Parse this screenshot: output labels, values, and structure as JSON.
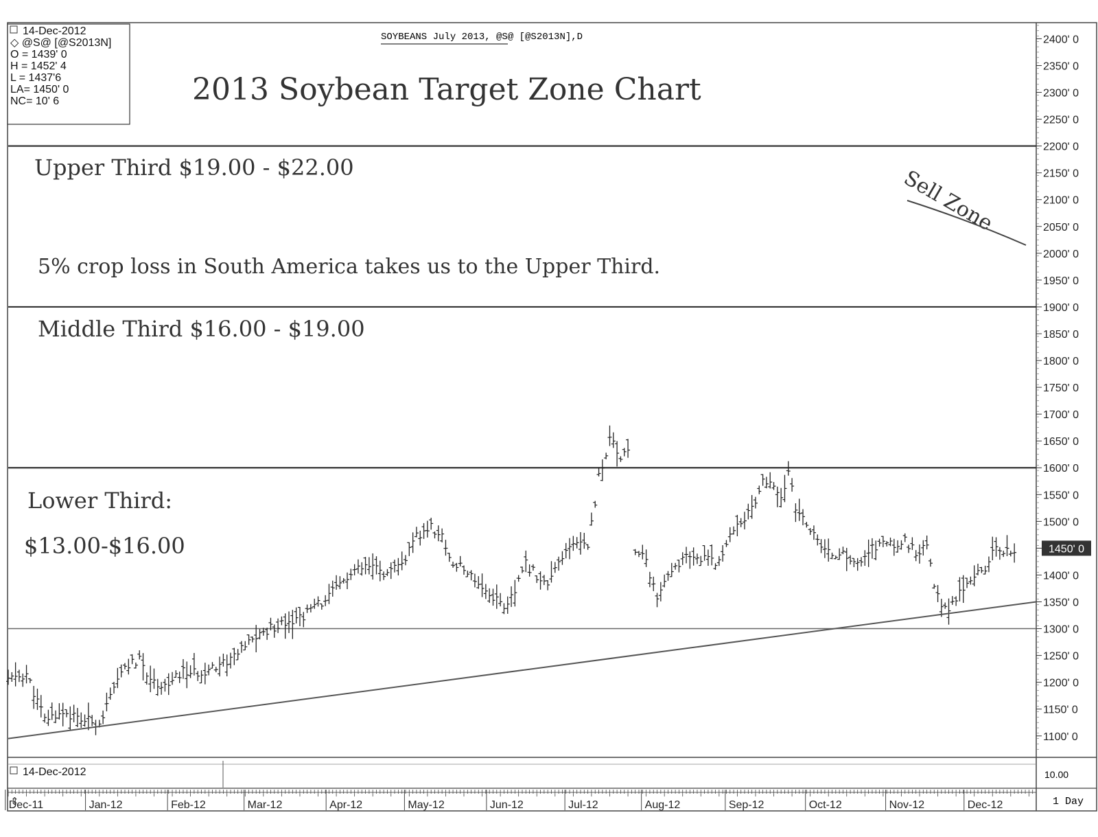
{
  "header": {
    "date": "14-Dec-2012",
    "symbol": "@S@ [@S2013N]",
    "open": "O = 1439' 0",
    "high": "H = 1452' 4",
    "low": "L = 1437'6",
    "last": "LA= 1450' 0",
    "net_change": "NC= 10' 6",
    "instrument_title": "SOYBEANS July 2013, @S@ [@S2013N],D"
  },
  "annotations": {
    "main_title": "2013 Soybean Target Zone Chart",
    "upper_third": "Upper Third $19.00 - $22.00",
    "crop_loss_note": "5% crop loss in South America takes us to the Upper Third.",
    "middle_third": "Middle Third $16.00 - $19.00",
    "lower_third_label": "Lower Third:",
    "lower_third_range": "$13.00-$16.00",
    "sell_zone": "Sell Zone"
  },
  "lower_panel": {
    "date": "14-Dec-2012",
    "scale_value": "10.00",
    "interval": "1 Day"
  },
  "colors": {
    "ink": "#222222",
    "pencil": "#555555",
    "paper": "#ffffff"
  },
  "chart_data": {
    "type": "bar",
    "subtype": "ohlc",
    "title": "SOYBEANS July 2013, @S@ [@S2013N],D",
    "ylim": [
      1060,
      2430
    ],
    "y_ticks": [
      2400,
      2350,
      2300,
      2250,
      2200,
      2150,
      2100,
      2050,
      2000,
      1950,
      1900,
      1850,
      1800,
      1750,
      1700,
      1650,
      1600,
      1550,
      1500,
      1450,
      1400,
      1350,
      1300,
      1250,
      1200,
      1150,
      1100
    ],
    "y_tick_labels": [
      "2400' 0",
      "2350' 0",
      "2300' 0",
      "2250' 0",
      "2200' 0",
      "2150' 0",
      "2100' 0",
      "2050' 0",
      "2000' 0",
      "1950' 0",
      "1900' 0",
      "1850' 0",
      "1800' 0",
      "1750' 0",
      "1700' 0",
      "1650' 0",
      "1600' 0",
      "1550' 0",
      "1500' 0",
      "1450' 0",
      "1400' 0",
      "1350' 0",
      "1300' 0",
      "1250' 0",
      "1200' 0",
      "1150' 0",
      "1100' 0"
    ],
    "last_price_label": "1450' 0",
    "last_price": 1450,
    "x_labels": [
      "Dec-11",
      "Jan-12",
      "Feb-12",
      "Mar-12",
      "Apr-12",
      "May-12",
      "Jun-12",
      "Jul-12",
      "Aug-12",
      "Sep-12",
      "Oct-12",
      "Nov-12",
      "Dec-12"
    ],
    "x_label_positions": [
      0.7,
      22.7,
      45.2,
      66.2,
      88.7,
      110.2,
      132.7,
      154.2,
      175.2,
      198.2,
      220.2,
      242.2,
      263.7
    ],
    "x_range": [
      0,
      282
    ],
    "zone_lines": [
      2200,
      1900,
      1600,
      1300
    ],
    "trendline": [
      {
        "x": 0,
        "y": 1095
      },
      {
        "x": 282,
        "y": 1350
      }
    ],
    "close_series": [
      {
        "x": 0,
        "y": 1205
      },
      {
        "x": 5,
        "y": 1215
      },
      {
        "x": 10,
        "y": 1130
      },
      {
        "x": 15,
        "y": 1145
      },
      {
        "x": 20,
        "y": 1130
      },
      {
        "x": 25,
        "y": 1125
      },
      {
        "x": 28,
        "y": 1170
      },
      {
        "x": 32,
        "y": 1230
      },
      {
        "x": 36,
        "y": 1240
      },
      {
        "x": 40,
        "y": 1200
      },
      {
        "x": 44,
        "y": 1195
      },
      {
        "x": 48,
        "y": 1220
      },
      {
        "x": 52,
        "y": 1215
      },
      {
        "x": 56,
        "y": 1230
      },
      {
        "x": 60,
        "y": 1240
      },
      {
        "x": 64,
        "y": 1260
      },
      {
        "x": 68,
        "y": 1285
      },
      {
        "x": 72,
        "y": 1300
      },
      {
        "x": 76,
        "y": 1315
      },
      {
        "x": 80,
        "y": 1320
      },
      {
        "x": 84,
        "y": 1340
      },
      {
        "x": 88,
        "y": 1360
      },
      {
        "x": 92,
        "y": 1390
      },
      {
        "x": 96,
        "y": 1410
      },
      {
        "x": 100,
        "y": 1415
      },
      {
        "x": 104,
        "y": 1400
      },
      {
        "x": 108,
        "y": 1420
      },
      {
        "x": 112,
        "y": 1470
      },
      {
        "x": 116,
        "y": 1490
      },
      {
        "x": 119,
        "y": 1470
      },
      {
        "x": 122,
        "y": 1420
      },
      {
        "x": 125,
        "y": 1410
      },
      {
        "x": 128,
        "y": 1395
      },
      {
        "x": 131,
        "y": 1370
      },
      {
        "x": 134,
        "y": 1355
      },
      {
        "x": 137,
        "y": 1340
      },
      {
        "x": 139,
        "y": 1370
      },
      {
        "x": 142,
        "y": 1420
      },
      {
        "x": 145,
        "y": 1400
      },
      {
        "x": 148,
        "y": 1380
      },
      {
        "x": 151,
        "y": 1420
      },
      {
        "x": 154,
        "y": 1450
      },
      {
        "x": 157,
        "y": 1465
      },
      {
        "x": 159,
        "y": 1460
      },
      {
        "x": 161,
        "y": 1530
      },
      {
        "x": 162,
        "y": 1590
      },
      {
        "x": 163.5,
        "y": 1610
      },
      {
        "x": 164.5,
        "y": 1640
      },
      {
        "x": 165.5,
        "y": 1660
      },
      {
        "x": 166.5,
        "y": 1630
      },
      {
        "x": 167.5,
        "y": 1610
      },
      {
        "x": 168.5,
        "y": 1625
      },
      {
        "x": 169.5,
        "y": 1640
      },
      {
        "x": 170.5,
        "y": 1635
      },
      {
        "x": 172,
        "y": 1450
      },
      {
        "x": 174,
        "y": 1440
      },
      {
        "x": 176,
        "y": 1400
      },
      {
        "x": 178,
        "y": 1360
      },
      {
        "x": 180,
        "y": 1380
      },
      {
        "x": 183,
        "y": 1420
      },
      {
        "x": 186,
        "y": 1430
      },
      {
        "x": 189,
        "y": 1425
      },
      {
        "x": 192,
        "y": 1440
      },
      {
        "x": 195,
        "y": 1420
      },
      {
        "x": 198,
        "y": 1480
      },
      {
        "x": 201,
        "y": 1500
      },
      {
        "x": 204,
        "y": 1520
      },
      {
        "x": 207,
        "y": 1580
      },
      {
        "x": 210,
        "y": 1560
      },
      {
        "x": 212,
        "y": 1540
      },
      {
        "x": 214,
        "y": 1595
      },
      {
        "x": 216,
        "y": 1520
      },
      {
        "x": 219,
        "y": 1500
      },
      {
        "x": 222,
        "y": 1460
      },
      {
        "x": 225,
        "y": 1440
      },
      {
        "x": 228,
        "y": 1440
      },
      {
        "x": 231,
        "y": 1430
      },
      {
        "x": 234,
        "y": 1420
      },
      {
        "x": 237,
        "y": 1450
      },
      {
        "x": 240,
        "y": 1460
      },
      {
        "x": 243,
        "y": 1455
      },
      {
        "x": 246,
        "y": 1465
      },
      {
        "x": 249,
        "y": 1440
      },
      {
        "x": 252,
        "y": 1450
      },
      {
        "x": 254,
        "y": 1380
      },
      {
        "x": 256,
        "y": 1350
      },
      {
        "x": 258,
        "y": 1335
      },
      {
        "x": 260,
        "y": 1360
      },
      {
        "x": 262,
        "y": 1380
      },
      {
        "x": 264,
        "y": 1395
      },
      {
        "x": 266,
        "y": 1410
      },
      {
        "x": 268,
        "y": 1415
      },
      {
        "x": 270,
        "y": 1440
      },
      {
        "x": 272,
        "y": 1450
      },
      {
        "x": 274,
        "y": 1445
      },
      {
        "x": 276,
        "y": 1450
      }
    ]
  }
}
